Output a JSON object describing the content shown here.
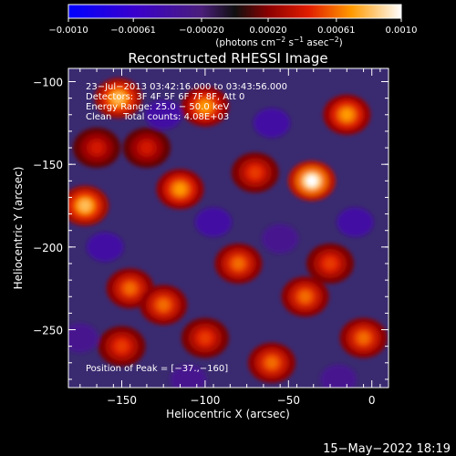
{
  "chart_data": {
    "type": "heatmap",
    "title": "Reconstructed RHESSI Image",
    "xlabel": "Heliocentric X (arcsec)",
    "ylabel": "Heliocentric Y (arcsec)",
    "xlim": [
      -182,
      10
    ],
    "ylim": [
      -285,
      -92
    ],
    "x_ticks": [
      -150,
      -100,
      -50,
      0
    ],
    "x_tick_labels": [
      "−150",
      "−100",
      "−50",
      "0"
    ],
    "y_ticks": [
      -100,
      -150,
      -200,
      -250
    ],
    "y_tick_labels": [
      "−100",
      "−150",
      "−200",
      "−250"
    ],
    "colorbar": {
      "range": [
        -0.001,
        0.001
      ],
      "ticks": [
        -0.001,
        -0.00061,
        -0.0002,
        0.0002,
        0.00061,
        0.001
      ],
      "tick_labels": [
        "−0.0010",
        "−0.00061",
        "−0.00020",
        "0.00020",
        "0.00061",
        "0.0010"
      ],
      "unit_base": "(photons cm",
      "unit_exp1": "−2",
      "unit_mid": " s",
      "unit_exp2": "−1",
      "unit_end": " asec",
      "unit_exp3": "−2",
      "unit_close": ")"
    },
    "annotations": [
      "23−Jul−2013 03:42:16.000 to 03:43:56.000",
      "Detectors: 3F 4F 5F 6F 7F 8F, Att 0",
      "Energy Range: 25.0 − 50.0 keV",
      "Clean    Total counts: 4.08E+03"
    ],
    "peak_label": "Position of Peak = [−37.,−160]",
    "peak_position": [
      -37,
      -160
    ],
    "bright_sources": [
      {
        "x": -36,
        "y": -160,
        "value": 0.001
      },
      {
        "x": -152,
        "y": -110,
        "value": 0.0008
      },
      {
        "x": -172,
        "y": -175,
        "value": 0.0008
      },
      {
        "x": -100,
        "y": -115,
        "value": 0.0007
      },
      {
        "x": -115,
        "y": -165,
        "value": 0.0007
      },
      {
        "x": -15,
        "y": -120,
        "value": 0.0007
      },
      {
        "x": -145,
        "y": -225,
        "value": 0.0006
      },
      {
        "x": -125,
        "y": -235,
        "value": 0.0006
      },
      {
        "x": -80,
        "y": -210,
        "value": 0.0006
      },
      {
        "x": -40,
        "y": -230,
        "value": 0.0006
      },
      {
        "x": -60,
        "y": -270,
        "value": 0.0006
      },
      {
        "x": -5,
        "y": -255,
        "value": 0.0006
      },
      {
        "x": -150,
        "y": -260,
        "value": 0.0005
      },
      {
        "x": -100,
        "y": -255,
        "value": 0.0005
      },
      {
        "x": -70,
        "y": -155,
        "value": 0.0005
      },
      {
        "x": -135,
        "y": -140,
        "value": 0.0004
      },
      {
        "x": -25,
        "y": -210,
        "value": 0.0005
      },
      {
        "x": -165,
        "y": -140,
        "value": 0.0004
      }
    ],
    "dark_regions": [
      {
        "x": -125,
        "y": -120,
        "value": -0.0004
      },
      {
        "x": -160,
        "y": -200,
        "value": -0.0004
      },
      {
        "x": -95,
        "y": -185,
        "value": -0.0004
      },
      {
        "x": -60,
        "y": -125,
        "value": -0.0004
      },
      {
        "x": -10,
        "y": -185,
        "value": -0.0004
      },
      {
        "x": -110,
        "y": -280,
        "value": -0.0003
      },
      {
        "x": -20,
        "y": -280,
        "value": -0.0003
      },
      {
        "x": -175,
        "y": -255,
        "value": -0.0003
      },
      {
        "x": -55,
        "y": -195,
        "value": -0.0003
      }
    ]
  },
  "timestamp": "15−May−2022 18:19"
}
